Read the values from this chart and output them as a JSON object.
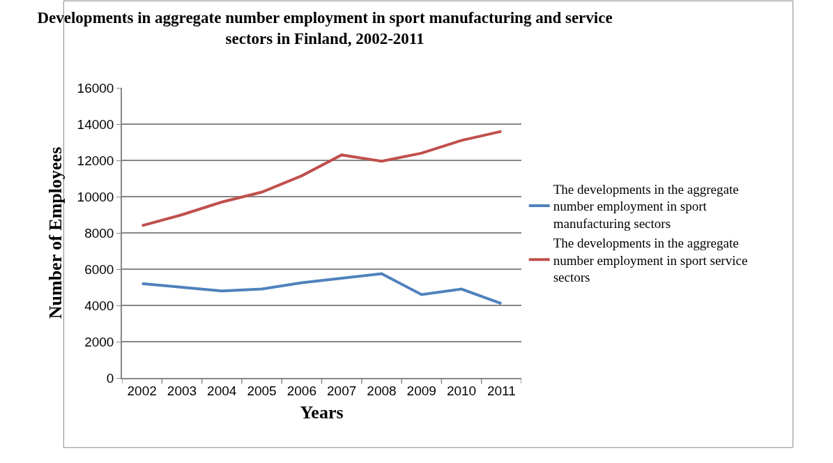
{
  "chart_data": {
    "type": "line",
    "title": "Developments in aggregate number employment in sport manufacturing and service sectors in Finland, 2002-2011",
    "xlabel": "Years",
    "ylabel": "Number of Employees",
    "categories": [
      "2002",
      "2003",
      "2004",
      "2005",
      "2006",
      "2007",
      "2008",
      "2009",
      "2010",
      "2011"
    ],
    "series": [
      {
        "name": "The developments in the aggregate number employment in sport manufacturing sectors",
        "color": "#4f81bd",
        "values": [
          5200,
          5000,
          4800,
          4900,
          5250,
          5500,
          5750,
          4600,
          4900,
          4100
        ]
      },
      {
        "name": "The developments in the aggregate number employment in sport service sectors",
        "color": "#c0504d",
        "values": [
          8400,
          9000,
          9700,
          10250,
          11150,
          12300,
          11950,
          12400,
          13100,
          13600
        ]
      }
    ],
    "ylim": [
      0,
      16000
    ],
    "yticks": [
      0,
      2000,
      4000,
      6000,
      8000,
      10000,
      12000,
      14000,
      16000
    ],
    "grid": "y",
    "legend": "right",
    "marker": "none",
    "line_style": "solid"
  }
}
